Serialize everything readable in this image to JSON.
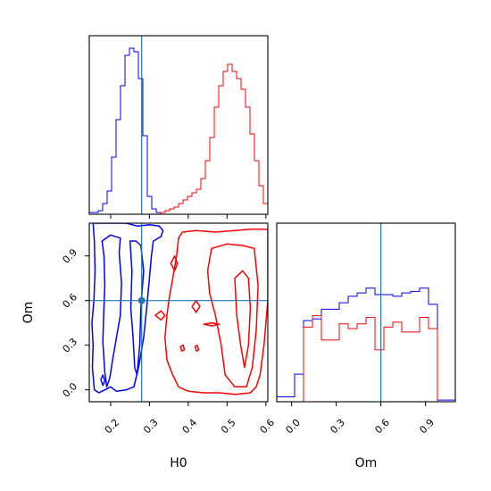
{
  "chart_data": {
    "type": "corner",
    "parameters": [
      "H0",
      "Om"
    ],
    "truth": {
      "H0": 0.28,
      "Om": 0.6,
      "color": "#1f77b4"
    },
    "series_colors": {
      "blue": "#0000ff",
      "red": "#ff0000"
    },
    "panels": {
      "h0_hist": {
        "xlim": [
          0.145,
          0.605
        ],
        "bin_edges": [
          0.145,
          0.1565,
          0.168,
          0.1795,
          0.191,
          0.2025,
          0.214,
          0.2255,
          0.237,
          0.2485,
          0.26,
          0.2715,
          0.283,
          0.2945,
          0.306,
          0.3175,
          0.329,
          0.3405,
          0.352,
          0.3635,
          0.375,
          0.3865,
          0.398,
          0.4095,
          0.421,
          0.4325,
          0.444,
          0.4555,
          0.467,
          0.4785,
          0.49,
          0.5015,
          0.513,
          0.5245,
          0.536,
          0.5475,
          0.559,
          0.5705,
          0.582,
          0.5935,
          0.605
        ],
        "blue": [
          1,
          1,
          2,
          6,
          13,
          32,
          53,
          72,
          89,
          93,
          91,
          76,
          44,
          10,
          3,
          1,
          0,
          0,
          0,
          0,
          0,
          0,
          0,
          0,
          0,
          0,
          0,
          0,
          0,
          0,
          0,
          0,
          0,
          0,
          0,
          0,
          0,
          0,
          0,
          0
        ],
        "red": [
          0,
          0,
          0,
          0,
          0,
          0,
          0,
          0,
          0,
          0,
          0,
          0,
          0,
          0,
          0,
          0,
          1,
          2,
          3,
          4,
          6,
          8,
          10,
          12,
          14,
          20,
          30,
          43,
          60,
          72,
          80,
          84,
          80,
          76,
          70,
          60,
          45,
          30,
          16,
          6
        ],
        "ymax": 100
      },
      "om_hist": {
        "xlim": [
          -0.1,
          1.1
        ],
        "bin_edges": [
          -0.1,
          -0.04,
          0.02,
          0.08,
          0.14,
          0.2,
          0.26,
          0.32,
          0.38,
          0.44,
          0.5,
          0.56,
          0.62,
          0.68,
          0.74,
          0.8,
          0.86,
          0.92,
          0.98,
          1.04,
          1.1
        ],
        "blue": [
          3,
          3,
          17,
          50,
          51,
          57,
          57,
          61,
          65,
          67,
          70,
          66,
          66,
          65,
          67,
          68,
          70,
          60,
          1,
          1
        ],
        "red": [
          0,
          0,
          0,
          46,
          53,
          38,
          38,
          48,
          45,
          48,
          52,
          32,
          46,
          49,
          43,
          43,
          52,
          45,
          0,
          0
        ],
        "ymax": 110
      },
      "scatter_contours": {
        "x": "H0",
        "y": "Om",
        "xlim": [
          0.145,
          0.605
        ],
        "ylim": [
          -0.08,
          1.12
        ]
      }
    },
    "axes": {
      "h0_ticks": [
        "0.2",
        "0.3",
        "0.4",
        "0.5",
        "0.6"
      ],
      "om_ticks": [
        "0.0",
        "0.3",
        "0.6",
        "0.9"
      ]
    },
    "xlabel_bottom_left": "H0",
    "xlabel_bottom_right": "Om",
    "ylabel_left": "Om"
  }
}
